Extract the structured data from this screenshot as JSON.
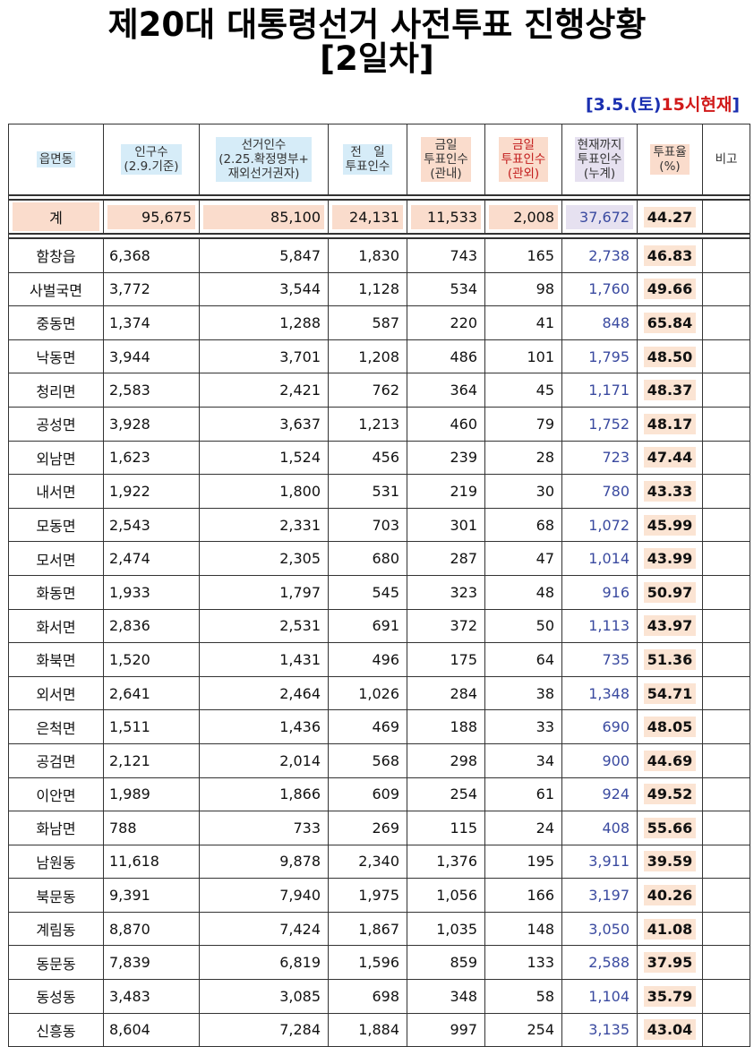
{
  "title": {
    "line1": "제20대 대통령선거 사전투표 진행상황",
    "line2": "[2일차]"
  },
  "timestamp": {
    "date": "[3.5.(토)",
    "time": "15시현재",
    "bracket": "]"
  },
  "colors": {
    "header_blue": "#d6ecf8",
    "header_peach": "#fadccc",
    "header_red_text": "#c21b1b",
    "cumulative_text": "#3a4aa0",
    "rate_highlight": "#fbe4d3"
  },
  "headers": {
    "region": "읍면동",
    "population": [
      "인구수",
      "(2.9.기준)"
    ],
    "electors": [
      "선거인수",
      "(2.25.확정명부+",
      "재외선거권자)"
    ],
    "prev_day": [
      "전　일",
      "투표인수"
    ],
    "today_in": [
      "금일",
      "투표인수",
      "(관내)"
    ],
    "today_out": [
      "금일",
      "투표인수",
      "(관외)"
    ],
    "cumulative": [
      "현재까지",
      "투표인수",
      "(누계)"
    ],
    "rate": [
      "투표율",
      "(%)"
    ],
    "note": "비고"
  },
  "total": {
    "label": "계",
    "population": "95,675",
    "electors": "85,100",
    "prev_day": "24,131",
    "today_in": "11,533",
    "today_out": "2,008",
    "cumulative": "37,672",
    "rate": "44.27",
    "note": ""
  },
  "rows": [
    {
      "name": "함창읍",
      "population": "6,368",
      "electors": "5,847",
      "prev_day": "1,830",
      "today_in": "743",
      "today_out": "165",
      "cumulative": "2,738",
      "rate": "46.83",
      "note": ""
    },
    {
      "name": "사벌국면",
      "population": "3,772",
      "electors": "3,544",
      "prev_day": "1,128",
      "today_in": "534",
      "today_out": "98",
      "cumulative": "1,760",
      "rate": "49.66",
      "note": ""
    },
    {
      "name": "중동면",
      "population": "1,374",
      "electors": "1,288",
      "prev_day": "587",
      "today_in": "220",
      "today_out": "41",
      "cumulative": "848",
      "rate": "65.84",
      "note": ""
    },
    {
      "name": "낙동면",
      "population": "3,944",
      "electors": "3,701",
      "prev_day": "1,208",
      "today_in": "486",
      "today_out": "101",
      "cumulative": "1,795",
      "rate": "48.50",
      "note": ""
    },
    {
      "name": "청리면",
      "population": "2,583",
      "electors": "2,421",
      "prev_day": "762",
      "today_in": "364",
      "today_out": "45",
      "cumulative": "1,171",
      "rate": "48.37",
      "note": ""
    },
    {
      "name": "공성면",
      "population": "3,928",
      "electors": "3,637",
      "prev_day": "1,213",
      "today_in": "460",
      "today_out": "79",
      "cumulative": "1,752",
      "rate": "48.17",
      "note": ""
    },
    {
      "name": "외남면",
      "population": "1,623",
      "electors": "1,524",
      "prev_day": "456",
      "today_in": "239",
      "today_out": "28",
      "cumulative": "723",
      "rate": "47.44",
      "note": ""
    },
    {
      "name": "내서면",
      "population": "1,922",
      "electors": "1,800",
      "prev_day": "531",
      "today_in": "219",
      "today_out": "30",
      "cumulative": "780",
      "rate": "43.33",
      "note": ""
    },
    {
      "name": "모동면",
      "population": "2,543",
      "electors": "2,331",
      "prev_day": "703",
      "today_in": "301",
      "today_out": "68",
      "cumulative": "1,072",
      "rate": "45.99",
      "note": ""
    },
    {
      "name": "모서면",
      "population": "2,474",
      "electors": "2,305",
      "prev_day": "680",
      "today_in": "287",
      "today_out": "47",
      "cumulative": "1,014",
      "rate": "43.99",
      "note": ""
    },
    {
      "name": "화동면",
      "population": "1,933",
      "electors": "1,797",
      "prev_day": "545",
      "today_in": "323",
      "today_out": "48",
      "cumulative": "916",
      "rate": "50.97",
      "note": ""
    },
    {
      "name": "화서면",
      "population": "2,836",
      "electors": "2,531",
      "prev_day": "691",
      "today_in": "372",
      "today_out": "50",
      "cumulative": "1,113",
      "rate": "43.97",
      "note": ""
    },
    {
      "name": "화북면",
      "population": "1,520",
      "electors": "1,431",
      "prev_day": "496",
      "today_in": "175",
      "today_out": "64",
      "cumulative": "735",
      "rate": "51.36",
      "note": ""
    },
    {
      "name": "외서면",
      "population": "2,641",
      "electors": "2,464",
      "prev_day": "1,026",
      "today_in": "284",
      "today_out": "38",
      "cumulative": "1,348",
      "rate": "54.71",
      "note": ""
    },
    {
      "name": "은척면",
      "population": "1,511",
      "electors": "1,436",
      "prev_day": "469",
      "today_in": "188",
      "today_out": "33",
      "cumulative": "690",
      "rate": "48.05",
      "note": ""
    },
    {
      "name": "공검면",
      "population": "2,121",
      "electors": "2,014",
      "prev_day": "568",
      "today_in": "298",
      "today_out": "34",
      "cumulative": "900",
      "rate": "44.69",
      "note": ""
    },
    {
      "name": "이안면",
      "population": "1,989",
      "electors": "1,866",
      "prev_day": "609",
      "today_in": "254",
      "today_out": "61",
      "cumulative": "924",
      "rate": "49.52",
      "note": ""
    },
    {
      "name": "화남면",
      "population": "788",
      "electors": "733",
      "prev_day": "269",
      "today_in": "115",
      "today_out": "24",
      "cumulative": "408",
      "rate": "55.66",
      "note": ""
    },
    {
      "name": "남원동",
      "population": "11,618",
      "electors": "9,878",
      "prev_day": "2,340",
      "today_in": "1,376",
      "today_out": "195",
      "cumulative": "3,911",
      "rate": "39.59",
      "note": ""
    },
    {
      "name": "북문동",
      "population": "9,391",
      "electors": "7,940",
      "prev_day": "1,975",
      "today_in": "1,056",
      "today_out": "166",
      "cumulative": "3,197",
      "rate": "40.26",
      "note": ""
    },
    {
      "name": "계림동",
      "population": "8,870",
      "electors": "7,424",
      "prev_day": "1,867",
      "today_in": "1,035",
      "today_out": "148",
      "cumulative": "3,050",
      "rate": "41.08",
      "note": ""
    },
    {
      "name": "동문동",
      "population": "7,839",
      "electors": "6,819",
      "prev_day": "1,596",
      "today_in": "859",
      "today_out": "133",
      "cumulative": "2,588",
      "rate": "37.95",
      "note": ""
    },
    {
      "name": "동성동",
      "population": "3,483",
      "electors": "3,085",
      "prev_day": "698",
      "today_in": "348",
      "today_out": "58",
      "cumulative": "1,104",
      "rate": "35.79",
      "note": ""
    },
    {
      "name": "신흥동",
      "population": "8,604",
      "electors": "7,284",
      "prev_day": "1,884",
      "today_in": "997",
      "today_out": "254",
      "cumulative": "3,135",
      "rate": "43.04",
      "note": ""
    }
  ]
}
